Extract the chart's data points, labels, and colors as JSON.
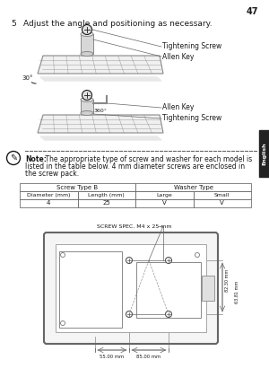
{
  "page_number": "47",
  "step_number": "5",
  "step_text": "Adjust the angle and positioning as necessary.",
  "note_bold": "Note:",
  "note_text": " The appropriate type of screw and washer for each model is listed in the table below. 4 mm diameter screws are enclosed in the screw pack.",
  "table_header1": "Screw Type B",
  "table_header2": "Washer Type",
  "table_subheaders": [
    "Diameter (mm)",
    "Length (mm)",
    "Large",
    "Small"
  ],
  "table_row": [
    "4",
    "25",
    "V",
    "V"
  ],
  "screw_spec": "SCREW SPEC. M4 x 25 mm",
  "dim1": "85.00 mm",
  "dim2": "55.00 mm",
  "dim3": "82.30 mm",
  "dim4": "63.81 mm",
  "label_tightening1": "Tightening Screw",
  "label_allen1": "Allen Key",
  "label_allen2": "Allen Key",
  "label_tightening2": "Tightening Screw",
  "angle_30": "30",
  "angle_360": "360",
  "bg_color": "#ffffff",
  "text_color": "#1a1a1a",
  "line_color": "#666666",
  "sidebar_color": "#222222",
  "table_border": "#555555",
  "note_dot_color": "#666666",
  "diagram_color": "#888888"
}
